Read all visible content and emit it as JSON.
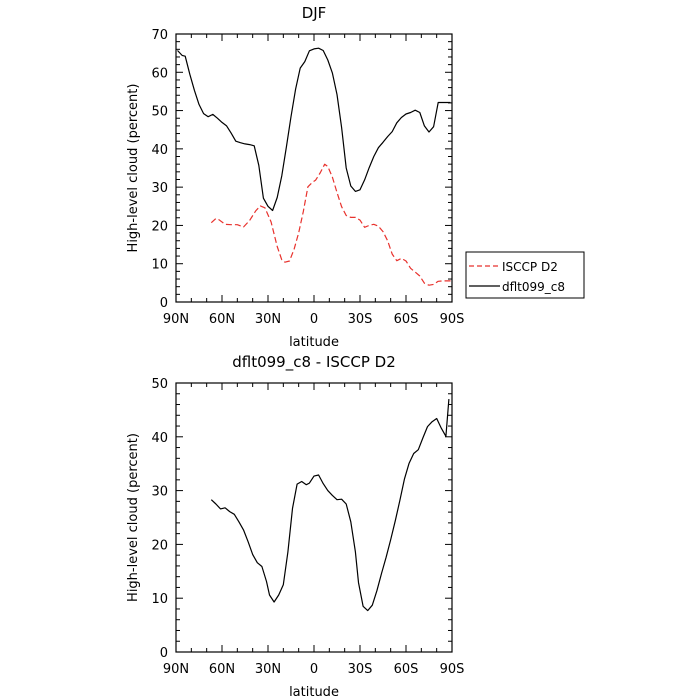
{
  "chart_data": [
    {
      "type": "line",
      "title": "DJF",
      "xlabel": "latitude",
      "ylabel": "High-level cloud (percent)",
      "xlim": [
        -90,
        90
      ],
      "ylim": [
        0,
        70
      ],
      "xticks": [
        -90,
        -60,
        -30,
        0,
        30,
        60,
        90
      ],
      "xtick_labels": [
        "90N",
        "60N",
        "30N",
        "0",
        "30S",
        "60S",
        "90S"
      ],
      "yticks": [
        0,
        10,
        20,
        30,
        40,
        50,
        60,
        70
      ],
      "ytick_labels": [
        "0",
        "10",
        "20",
        "30",
        "40",
        "50",
        "60",
        "70"
      ],
      "legend": "right",
      "series": [
        {
          "name": "ISCCP D2",
          "color": "#e8322d",
          "dash": "dashed",
          "x": [
            -67,
            -64,
            -62,
            -58,
            -54,
            -50,
            -46,
            -42,
            -38,
            -35,
            -32,
            -28,
            -24,
            -21,
            -19,
            -16,
            -13,
            -10,
            -7,
            -4,
            -1,
            1,
            4,
            7,
            9,
            12,
            15,
            18,
            21,
            24,
            27,
            30,
            33,
            36,
            39,
            42,
            45,
            48,
            51,
            54,
            57,
            60,
            63,
            66,
            69,
            72,
            75,
            78,
            81,
            84,
            87,
            90
          ],
          "y": [
            20.7,
            21.8,
            21.5,
            20.3,
            20.2,
            20.2,
            19.6,
            21.3,
            23.8,
            25.1,
            24.6,
            20.9,
            14.5,
            11,
            10.4,
            10.7,
            13.8,
            18.1,
            23.6,
            30.1,
            31.3,
            31.8,
            33.7,
            36,
            35.4,
            32.6,
            28.6,
            24.9,
            22.6,
            22.1,
            22.1,
            21.4,
            19.5,
            20,
            20.3,
            19.8,
            18.4,
            16,
            12.5,
            10.8,
            11.4,
            10.7,
            8.8,
            7.8,
            6.8,
            4.9,
            4.4,
            4.6,
            5.4,
            5.5,
            5.5,
            5.5
          ]
        },
        {
          "name": "dflt099_c8",
          "color": "#000000",
          "dash": "solid",
          "x": [
            -89,
            -86,
            -84,
            -81,
            -78,
            -75,
            -72,
            -69,
            -66,
            -63,
            -60,
            -57,
            -54,
            -51,
            -48,
            -45,
            -42,
            -39,
            -36,
            -33,
            -30,
            -27,
            -24,
            -21,
            -18,
            -15,
            -12,
            -9,
            -6,
            -3,
            0,
            3,
            6,
            9,
            12,
            15,
            18,
            21,
            24,
            27,
            30,
            33,
            36,
            39,
            42,
            45,
            48,
            51,
            54,
            57,
            60,
            63,
            66,
            69,
            72,
            75,
            78,
            81,
            84,
            87,
            89
          ],
          "y": [
            65.7,
            64.4,
            64.2,
            59.5,
            55.3,
            51.6,
            49.2,
            48.4,
            49,
            48,
            46.9,
            46,
            44.1,
            42,
            41.6,
            41.3,
            41.1,
            40.8,
            35.7,
            27.1,
            25,
            23.9,
            27.3,
            33,
            40.5,
            48.4,
            55.6,
            61.1,
            62.8,
            65.6,
            66.1,
            66.3,
            65.7,
            63.2,
            59.8,
            54.2,
            45.6,
            35,
            30.3,
            28.9,
            29.3,
            31.9,
            35.1,
            38,
            40.3,
            41.7,
            43.2,
            44.5,
            46.8,
            48.2,
            49.1,
            49.5,
            50.1,
            49.5,
            46,
            44.4,
            45.8,
            52.1,
            52.1,
            52.1,
            52.1
          ]
        }
      ]
    },
    {
      "type": "line",
      "title": "dflt099_c8 - ISCCP D2",
      "xlabel": "latitude",
      "ylabel": "High-level cloud (percent)",
      "xlim": [
        -90,
        90
      ],
      "ylim": [
        0,
        50
      ],
      "xticks": [
        -90,
        -60,
        -30,
        0,
        30,
        60,
        90
      ],
      "xtick_labels": [
        "90N",
        "60N",
        "30N",
        "0",
        "30S",
        "60S",
        "90S"
      ],
      "yticks": [
        0,
        10,
        20,
        30,
        40,
        50
      ],
      "ytick_labels": [
        "0",
        "10",
        "20",
        "30",
        "40",
        "50"
      ],
      "series": [
        {
          "color": "#000000",
          "dash": "solid",
          "x": [
            -67,
            -64,
            -61,
            -58,
            -55,
            -52,
            -49,
            -46,
            -43,
            -40,
            -37,
            -34,
            -31,
            -29,
            -26,
            -23,
            -20,
            -17,
            -14,
            -11,
            -8,
            -5,
            -3,
            0,
            3,
            6,
            9,
            12,
            15,
            18,
            21,
            24,
            27,
            29,
            32,
            35,
            38,
            41,
            44,
            47,
            50,
            53,
            56,
            59,
            62,
            65,
            68,
            71,
            74,
            77,
            80,
            83,
            86,
            88
          ],
          "y": [
            28.3,
            27.5,
            26.6,
            26.8,
            26.1,
            25.6,
            24.2,
            22.7,
            20.5,
            18.1,
            16.6,
            15.9,
            13.1,
            10.6,
            9.3,
            10.6,
            12.5,
            18.6,
            26.7,
            31.2,
            31.7,
            31.1,
            31.4,
            32.7,
            32.9,
            31.3,
            30,
            29.1,
            28.3,
            28.4,
            27.5,
            24.2,
            18.6,
            12.9,
            8.5,
            7.7,
            8.7,
            11.4,
            14.6,
            17.6,
            20.9,
            24.4,
            28.2,
            32.2,
            35.1,
            36.9,
            37.6,
            39.8,
            41.9,
            42.8,
            43.4,
            41.6,
            40.1,
            47
          ]
        }
      ]
    }
  ]
}
